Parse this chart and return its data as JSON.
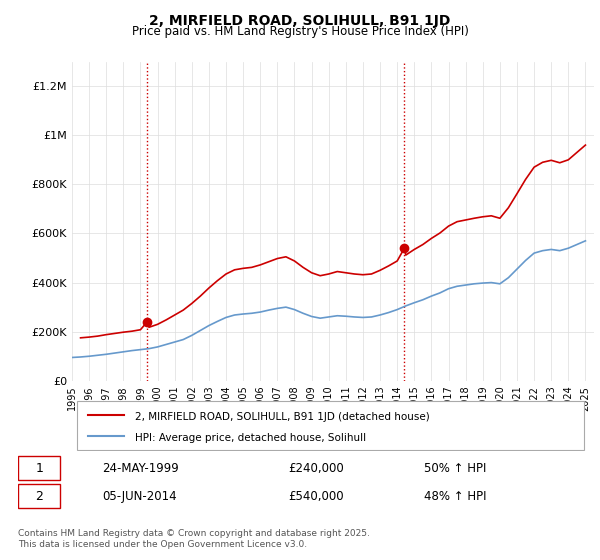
{
  "title": "2, MIRFIELD ROAD, SOLIHULL, B91 1JD",
  "subtitle": "Price paid vs. HM Land Registry's House Price Index (HPI)",
  "ylabel_ticks": [
    "£0",
    "£200K",
    "£400K",
    "£600K",
    "£800K",
    "£1M",
    "£1.2M"
  ],
  "ytick_vals": [
    0,
    200000,
    400000,
    600000,
    800000,
    1000000,
    1200000
  ],
  "ylim": [
    0,
    1300000
  ],
  "xlim_start": 1995.0,
  "xlim_end": 2025.5,
  "sale1_year": 1999.39,
  "sale1_price": 240000,
  "sale1_label": "1",
  "sale1_date": "24-MAY-1999",
  "sale1_pct": "50% ↑ HPI",
  "sale2_year": 2014.42,
  "sale2_price": 540000,
  "sale2_label": "2",
  "sale2_date": "05-JUN-2014",
  "sale2_pct": "48% ↑ HPI",
  "vline_color": "#cc0000",
  "vline_style": ":",
  "sale_dot_color": "#cc0000",
  "hpi_line_color": "#6699cc",
  "price_line_color": "#cc0000",
  "legend_label_price": "2, MIRFIELD ROAD, SOLIHULL, B91 1JD (detached house)",
  "legend_label_hpi": "HPI: Average price, detached house, Solihull",
  "footer": "Contains HM Land Registry data © Crown copyright and database right 2025.\nThis data is licensed under the Open Government Licence v3.0.",
  "annotation_box_color": "#cc0000",
  "hpi_years": [
    1995,
    1995.5,
    1996,
    1996.5,
    1997,
    1997.5,
    1998,
    1998.5,
    1999,
    1999.5,
    2000,
    2000.5,
    2001,
    2001.5,
    2002,
    2002.5,
    2003,
    2003.5,
    2004,
    2004.5,
    2005,
    2005.5,
    2006,
    2006.5,
    2007,
    2007.5,
    2008,
    2008.5,
    2009,
    2009.5,
    2010,
    2010.5,
    2011,
    2011.5,
    2012,
    2012.5,
    2013,
    2013.5,
    2014,
    2014.5,
    2015,
    2015.5,
    2016,
    2016.5,
    2017,
    2017.5,
    2018,
    2018.5,
    2019,
    2019.5,
    2020,
    2020.5,
    2021,
    2021.5,
    2022,
    2022.5,
    2023,
    2023.5,
    2024,
    2024.5,
    2025
  ],
  "hpi_values": [
    95000,
    97000,
    100000,
    104000,
    108000,
    113000,
    118000,
    123000,
    127000,
    131000,
    138000,
    148000,
    158000,
    168000,
    185000,
    205000,
    225000,
    242000,
    258000,
    268000,
    272000,
    275000,
    280000,
    288000,
    295000,
    300000,
    290000,
    275000,
    262000,
    255000,
    260000,
    265000,
    263000,
    260000,
    258000,
    260000,
    268000,
    278000,
    290000,
    305000,
    318000,
    330000,
    345000,
    358000,
    375000,
    385000,
    390000,
    395000,
    398000,
    400000,
    395000,
    420000,
    455000,
    490000,
    520000,
    530000,
    535000,
    530000,
    540000,
    555000,
    570000
  ],
  "price_years": [
    1995.5,
    1996,
    1996.5,
    1997,
    1997.5,
    1998,
    1998.5,
    1999,
    1999.39,
    1999.5,
    2000,
    2000.5,
    2001,
    2001.5,
    2002,
    2002.5,
    2003,
    2003.5,
    2004,
    2004.5,
    2005,
    2005.5,
    2006,
    2006.5,
    2007,
    2007.5,
    2008,
    2008.5,
    2009,
    2009.5,
    2010,
    2010.5,
    2011,
    2011.5,
    2012,
    2012.5,
    2013,
    2013.5,
    2014,
    2014.42,
    2014.5,
    2015,
    2015.5,
    2016,
    2016.5,
    2017,
    2017.5,
    2018,
    2018.5,
    2019,
    2019.5,
    2020,
    2020.5,
    2021,
    2021.5,
    2022,
    2022.5,
    2023,
    2023.5,
    2024,
    2024.5,
    2025
  ],
  "price_values": [
    175000,
    178000,
    182000,
    188000,
    193000,
    198000,
    202000,
    208000,
    240000,
    218000,
    230000,
    248000,
    268000,
    288000,
    315000,
    345000,
    378000,
    408000,
    435000,
    452000,
    458000,
    462000,
    472000,
    485000,
    498000,
    505000,
    488000,
    462000,
    440000,
    428000,
    435000,
    445000,
    440000,
    435000,
    432000,
    435000,
    450000,
    468000,
    488000,
    540000,
    512000,
    535000,
    555000,
    580000,
    602000,
    630000,
    648000,
    655000,
    662000,
    668000,
    672000,
    662000,
    705000,
    762000,
    820000,
    870000,
    890000,
    898000,
    888000,
    900000,
    930000,
    960000
  ]
}
